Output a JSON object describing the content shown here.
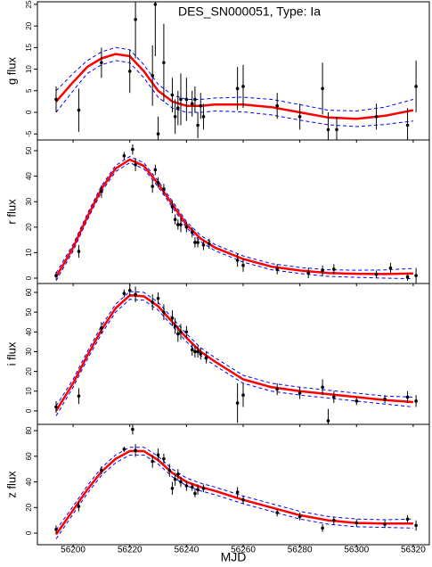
{
  "chart_data": [
    {
      "type": "lightcurve",
      "title": "DES_SN000051, Type: Ia",
      "ylabel": "g flux",
      "xlim": [
        56187.4,
        56326
      ],
      "ylim": [
        -6.4,
        25.6
      ],
      "yticks": [
        -5,
        0,
        5,
        10,
        15,
        20,
        25
      ],
      "points": {
        "color": "#000000",
        "x": [
          56194,
          56202,
          56210,
          56220,
          56222,
          56228,
          56229,
          56230,
          56232,
          56235,
          56236,
          56237,
          56238,
          56240,
          56242,
          56243,
          56244,
          56245,
          56246,
          56258,
          56260,
          56272,
          56280,
          56288,
          56290,
          56293,
          56307,
          56318,
          56321
        ],
        "y": [
          3,
          0.5,
          11.5,
          9.5,
          21.5,
          8.5,
          25,
          -5,
          11.5,
          4,
          -1,
          1,
          3,
          3,
          2,
          3,
          -3,
          1.5,
          -1,
          5.5,
          6,
          1.5,
          -1,
          5.5,
          -4,
          -4,
          -1,
          -3,
          6
        ],
        "error": [
          3,
          5,
          3.5,
          5,
          9,
          7,
          12,
          4,
          9,
          4,
          4,
          4,
          6,
          5,
          3,
          3,
          3,
          3,
          3,
          5,
          5,
          3,
          3,
          6,
          4,
          3,
          3,
          4,
          6
        ]
      },
      "fit": {
        "color": "#ff0000",
        "band_color": "#0000ff",
        "x": [
          56194,
          56200,
          56205,
          56210,
          56215,
          56220,
          56225,
          56230,
          56235,
          56240,
          56245,
          56250,
          56260,
          56270,
          56280,
          56290,
          56300,
          56310,
          56320
        ],
        "values": [
          2.5,
          7,
          10.5,
          12.5,
          13.5,
          13,
          9.5,
          5,
          2.5,
          1.5,
          1.5,
          1.8,
          1.8,
          1.2,
          0,
          -1.2,
          -1.5,
          -0.8,
          0.5
        ],
        "upper": [
          5,
          9,
          12,
          14,
          15,
          14.5,
          11,
          6.5,
          4,
          3,
          3,
          3.3,
          3.5,
          3,
          1.8,
          0.5,
          0.3,
          1.2,
          3
        ],
        "lower": [
          0,
          5,
          9,
          11,
          12,
          11.5,
          8,
          3.5,
          1,
          0,
          0,
          0.3,
          0.1,
          -0.6,
          -1.8,
          -2.9,
          -3.3,
          -2.8,
          -2
        ]
      }
    },
    {
      "type": "lightcurve",
      "ylabel": "r flux",
      "xlim": [
        56187.4,
        56326
      ],
      "ylim": [
        -2.1,
        54.2
      ],
      "yticks": [
        0,
        10,
        20,
        30,
        40,
        50
      ],
      "points": {
        "color": "#000000",
        "x": [
          56194,
          56202,
          56210,
          56218,
          56221,
          56222,
          56228,
          56229,
          56230,
          56232,
          56235,
          56236,
          56237,
          56238,
          56240,
          56242,
          56243,
          56244,
          56246,
          56248,
          56258,
          56260,
          56272,
          56283,
          56288,
          56292,
          56307,
          56312,
          56318,
          56321
        ],
        "y": [
          1,
          10.5,
          34,
          48,
          50.5,
          44.5,
          36,
          42.5,
          37.5,
          35,
          28,
          23,
          21,
          21,
          20,
          18,
          14,
          14,
          13,
          13.5,
          7,
          5,
          3.5,
          2,
          3,
          3.5,
          1.5,
          4,
          0.5,
          1
        ],
        "error": [
          1.5,
          2.5,
          2.5,
          1.5,
          2,
          2.5,
          2.5,
          2,
          2,
          2,
          2.5,
          2,
          2,
          3,
          2,
          2,
          2,
          2,
          2,
          2,
          2.5,
          2.5,
          2,
          2,
          2,
          2,
          1.5,
          2,
          1.5,
          3
        ]
      },
      "fit": {
        "color": "#ff0000",
        "band_color": "#0000ff",
        "x": [
          56194,
          56200,
          56205,
          56210,
          56215,
          56220,
          56225,
          56230,
          56235,
          56240,
          56245,
          56250,
          56260,
          56270,
          56280,
          56290,
          56300,
          56310,
          56320
        ],
        "values": [
          0.5,
          12,
          24,
          35,
          43,
          46.5,
          44,
          37,
          29,
          21,
          15.5,
          12,
          7.5,
          4.5,
          3,
          2,
          1.7,
          1.6,
          1.8
        ],
        "upper": [
          2,
          13.3,
          25.2,
          36.2,
          44.2,
          47.7,
          45.2,
          38.2,
          30.2,
          22.2,
          16.7,
          13.2,
          8.7,
          5.7,
          4.2,
          3.3,
          3.1,
          3.2,
          3.8
        ],
        "lower": [
          -1,
          10.7,
          22.8,
          33.8,
          41.8,
          45.3,
          42.8,
          35.8,
          27.8,
          19.8,
          14.3,
          10.8,
          6.3,
          3.3,
          1.8,
          0.7,
          0.3,
          0,
          -0.2
        ]
      }
    },
    {
      "type": "lightcurve",
      "ylabel": "i flux",
      "xlim": [
        56187.4,
        56326
      ],
      "ylim": [
        -6.8,
        64.5
      ],
      "yticks": [
        0,
        10,
        20,
        30,
        40,
        50,
        60
      ],
      "points": {
        "color": "#000000",
        "x": [
          56194,
          56202,
          56210,
          56218,
          56220,
          56222,
          56228,
          56230,
          56232,
          56235,
          56236,
          56237,
          56238,
          56240,
          56242,
          56243,
          56244,
          56245,
          56247,
          56258,
          56260,
          56272,
          56280,
          56288,
          56290,
          56292,
          56300,
          56310,
          56318,
          56321
        ],
        "y": [
          2,
          7.5,
          42,
          59.5,
          61,
          59,
          55,
          57,
          50,
          47,
          43,
          39,
          40,
          40,
          31,
          30,
          30,
          29,
          27,
          4,
          8,
          11,
          9,
          12,
          -5,
          7,
          5,
          6,
          7,
          5
        ],
        "error": [
          3,
          4,
          3,
          2,
          3,
          4,
          4,
          3,
          4,
          4,
          4,
          4,
          4,
          3,
          3,
          3,
          3,
          3,
          3,
          10,
          6,
          3,
          3,
          4,
          6,
          3,
          2,
          2,
          3,
          3
        ]
      },
      "fit": {
        "color": "#ff0000",
        "band_color": "#0000ff",
        "x": [
          56194,
          56200,
          56205,
          56210,
          56215,
          56220,
          56225,
          56230,
          56235,
          56240,
          56245,
          56250,
          56260,
          56270,
          56280,
          56290,
          56300,
          56310,
          56320
        ],
        "values": [
          0,
          14,
          28,
          41,
          52,
          58.5,
          58,
          53,
          45,
          37,
          30,
          25,
          16,
          12,
          10,
          8.5,
          7,
          5.5,
          4.5
        ],
        "upper": [
          2.5,
          16,
          30,
          43,
          54,
          60.5,
          60,
          55,
          47,
          39,
          32,
          27,
          18,
          14,
          12,
          10.5,
          9,
          7.5,
          7
        ],
        "lower": [
          -2.5,
          12,
          26,
          39,
          50,
          56.5,
          56,
          51,
          43,
          35,
          28,
          23,
          14,
          10,
          8,
          6.5,
          5,
          3.5,
          2
        ]
      }
    },
    {
      "type": "lightcurve",
      "ylabel": "z flux",
      "xlabel": "MJD",
      "xlim": [
        56187.4,
        56326
      ],
      "ylim": [
        -9,
        84.9
      ],
      "yticks": [
        0,
        20,
        40,
        60,
        80
      ],
      "xticks": [
        56200,
        56220,
        56240,
        56260,
        56280,
        56300,
        56320
      ],
      "points": {
        "color": "#000000",
        "x": [
          56194,
          56202,
          56210,
          56218,
          56221,
          56222,
          56228,
          56230,
          56232,
          56234,
          56235,
          56236,
          56237,
          56238,
          56240,
          56242,
          56243,
          56244,
          56246,
          56258,
          56260,
          56272,
          56280,
          56288,
          56292,
          56300,
          56310,
          56318,
          56321
        ],
        "y": [
          3,
          21,
          49,
          65.5,
          81,
          64.5,
          56,
          61,
          58,
          49,
          35,
          42,
          46,
          40,
          37,
          36,
          31,
          34,
          35,
          32,
          26,
          16,
          13,
          4,
          10,
          8,
          7,
          11,
          6
        ],
        "error": [
          3,
          4,
          3,
          2,
          4,
          5,
          5,
          5,
          4,
          5,
          5,
          5,
          4,
          4,
          4,
          3,
          3,
          4,
          3,
          4,
          3,
          3,
          3,
          3,
          3,
          3,
          3,
          3,
          4
        ]
      },
      "fit": {
        "color": "#ff0000",
        "band_color": "#0000ff",
        "x": [
          56194,
          56200,
          56205,
          56210,
          56215,
          56220,
          56225,
          56230,
          56235,
          56240,
          56245,
          56250,
          56260,
          56270,
          56280,
          56290,
          56300,
          56310,
          56320
        ],
        "values": [
          -1,
          18,
          34,
          48,
          58,
          64,
          64,
          57,
          47,
          40,
          36,
          33,
          26,
          20,
          14,
          10,
          8,
          7.5,
          7.5
        ],
        "upper": [
          2.5,
          21,
          37,
          51,
          61,
          67,
          67,
          60,
          50,
          43,
          39,
          36,
          29,
          23,
          17,
          13,
          11,
          10.5,
          11
        ],
        "lower": [
          -4.5,
          15,
          31,
          45,
          55,
          61,
          61,
          54,
          44,
          37,
          33,
          30,
          23,
          17,
          11,
          7,
          5,
          4.5,
          4
        ]
      }
    }
  ]
}
